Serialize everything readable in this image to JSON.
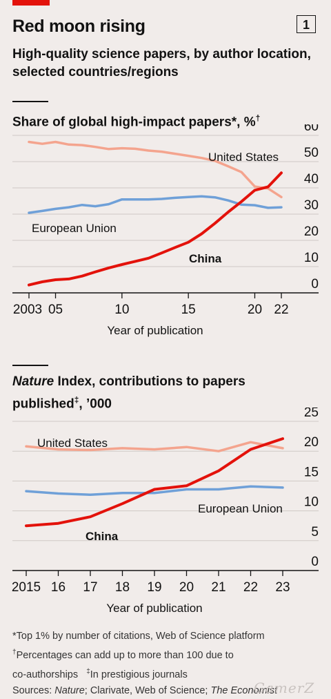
{
  "header": {
    "title": "Red moon rising",
    "chart_number": "1",
    "subtitle": "High-quality science papers, by author location, selected countries/regions"
  },
  "panel1": {
    "title": "Share of global high-impact papers*, %",
    "title_mark": "†"
  },
  "panel2": {
    "title_italic": "Nature",
    "title_rest": " Index, contributions to papers published",
    "title_mark": "‡",
    "title_suffix": ", ’000"
  },
  "footnotes": {
    "line1": "*Top 1% by number of citations, Web of Science platform",
    "line2_mark": "†",
    "line2": "Percentages can add up to more than 100 due to",
    "line3": "co-authorships",
    "line3_mark": "‡",
    "line3_rest": "In prestigious journals",
    "sources_label": "Sources: ",
    "sources_nature": "Nature",
    "sources_mid": "; Clarivate, Web of Science; ",
    "sources_econ": "The Economist"
  },
  "watermark": "GamerZ",
  "colors": {
    "china": "#e3120b",
    "us": "#f4a48e",
    "eu": "#6fa0d8",
    "grid": "#cfc9c6",
    "axis": "#121212"
  },
  "chart_data": [
    {
      "type": "line",
      "title": "Share of global high-impact papers*, %",
      "xlabel": "Year of publication",
      "ylabel": "",
      "x": [
        2003,
        2004,
        2005,
        2006,
        2007,
        2008,
        2009,
        2010,
        2011,
        2012,
        2013,
        2014,
        2015,
        2016,
        2017,
        2018,
        2019,
        2020,
        2021,
        2022
      ],
      "x_tick_values": [
        2003,
        2005,
        2010,
        2015,
        2020,
        2022
      ],
      "x_tick_labels": [
        "2003",
        "05",
        "10",
        "15",
        "20",
        "22"
      ],
      "ylim": [
        0,
        60
      ],
      "y_ticks": [
        0,
        10,
        20,
        30,
        40,
        50,
        60
      ],
      "grid": true,
      "series": [
        {
          "name": "United States",
          "color": "#f4a48e",
          "values": [
            57.5,
            56.8,
            57.5,
            56.5,
            56.3,
            55.6,
            54.8,
            55.1,
            54.9,
            54.2,
            53.8,
            53.0,
            52.2,
            51.4,
            50.3,
            48.2,
            46.0,
            40.5,
            39.8,
            36.5
          ]
        },
        {
          "name": "European Union",
          "color": "#6fa0d8",
          "values": [
            30.5,
            31.2,
            32.0,
            32.6,
            33.5,
            33.0,
            33.8,
            35.6,
            35.6,
            35.6,
            35.8,
            36.2,
            36.5,
            36.8,
            36.4,
            35.2,
            33.6,
            33.4,
            32.4,
            32.6
          ]
        },
        {
          "name": "China",
          "color": "#e3120b",
          "values": [
            3.0,
            4.2,
            5.0,
            5.3,
            6.4,
            8.0,
            9.5,
            10.8,
            12.0,
            13.2,
            15.2,
            17.3,
            19.3,
            22.5,
            26.5,
            30.8,
            34.8,
            39.1,
            40.4,
            45.7
          ]
        }
      ],
      "labels": {
        "us": "United States",
        "eu": "European Union",
        "china": "China"
      }
    },
    {
      "type": "line",
      "title": "Nature Index, contributions to papers published‡, ’000",
      "xlabel": "Year of publication",
      "ylabel": "",
      "x": [
        2015,
        2016,
        2017,
        2018,
        2019,
        2020,
        2021,
        2022,
        2023
      ],
      "x_tick_values": [
        2015,
        2016,
        2017,
        2018,
        2019,
        2020,
        2021,
        2022,
        2023
      ],
      "x_tick_labels": [
        "2015",
        "16",
        "17",
        "18",
        "19",
        "20",
        "21",
        "22",
        "23"
      ],
      "ylim": [
        0,
        25
      ],
      "y_ticks": [
        0,
        5,
        10,
        15,
        20,
        25
      ],
      "grid": true,
      "series": [
        {
          "name": "United States",
          "color": "#f4a48e",
          "values": [
            20.8,
            20.3,
            20.2,
            20.5,
            20.3,
            20.7,
            20.0,
            21.5,
            20.5
          ]
        },
        {
          "name": "European Union",
          "color": "#6fa0d8",
          "values": [
            13.3,
            12.9,
            12.7,
            13.0,
            13.0,
            13.6,
            13.6,
            14.1,
            13.9
          ]
        },
        {
          "name": "China",
          "color": "#e3120b",
          "values": [
            7.5,
            7.9,
            9.0,
            11.2,
            13.6,
            14.2,
            16.7,
            20.3,
            22.1
          ]
        }
      ],
      "labels": {
        "us": "United States",
        "eu": "European Union",
        "china": "China"
      }
    }
  ]
}
